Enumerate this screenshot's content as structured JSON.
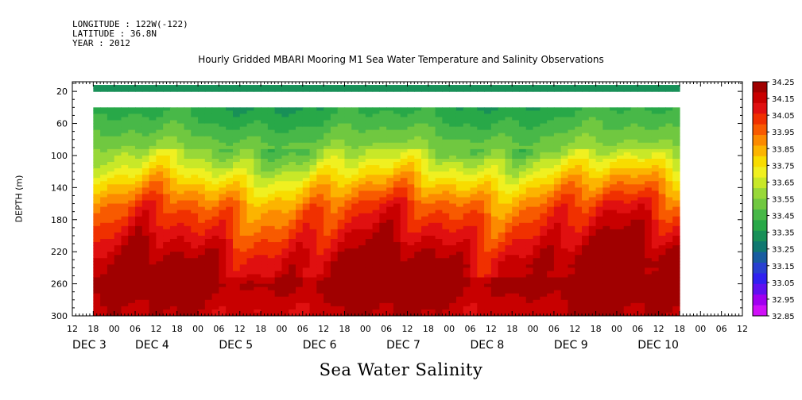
{
  "header": {
    "longitude": "LONGITUDE : 122W(-122)",
    "latitude": "LATITUDE : 36.8N",
    "year": "YEAR : 2012"
  },
  "chart_data": {
    "type": "heatmap",
    "title": "Hourly Gridded MBARI Mooring M1 Sea Water Temperature and Salinity Observations",
    "xlabel": "Sea Water Salinity",
    "ylabel": "DEPTH (m)",
    "y_ticks": [
      20,
      60,
      100,
      140,
      180,
      220,
      260,
      300
    ],
    "ylim": [
      300,
      8
    ],
    "x_hour_ticks": [
      "12",
      "18",
      "00",
      "06",
      "12",
      "18",
      "00",
      "06",
      "12",
      "18",
      "00",
      "06",
      "12",
      "18",
      "00",
      "06",
      "12",
      "18",
      "00",
      "06",
      "12",
      "18",
      "00",
      "06",
      "12",
      "18",
      "00",
      "06",
      "12",
      "18",
      "00",
      "06",
      "12"
    ],
    "x_day_labels": [
      "DEC  3",
      "DEC  4",
      "DEC  5",
      "DEC  6",
      "DEC  7",
      "DEC  8",
      "DEC  9",
      "DEC 10"
    ],
    "colorbar_levels": [
      "34.25",
      "34.15",
      "34.05",
      "33.95",
      "33.85",
      "33.75",
      "33.65",
      "33.55",
      "33.45",
      "33.35",
      "33.25",
      "33.15",
      "33.05",
      "32.95",
      "32.85"
    ],
    "colorbar_colors": [
      "#a00000",
      "#c80000",
      "#e01010",
      "#f03000",
      "#f85a00",
      "#fc8a00",
      "#fcb400",
      "#f8dc00",
      "#f0f020",
      "#c8e828",
      "#98d838",
      "#70c840",
      "#48b848",
      "#28a848",
      "#189058",
      "#107870",
      "#185ca0",
      "#2840d0",
      "#3020f0",
      "#6010f0",
      "#a000f0",
      "#d010f8"
    ],
    "data_region_hours": [
      0,
      168
    ],
    "surface_depth_band": [
      10,
      18
    ],
    "missing_depth_band": [
      18,
      40
    ],
    "profile_points": [
      {
        "depth": 15,
        "salinity": 33.32
      },
      {
        "depth": 50,
        "salinity": 33.4
      },
      {
        "depth": 80,
        "salinity": 33.5
      },
      {
        "depth": 110,
        "salinity": 33.62
      },
      {
        "depth": 130,
        "salinity": 33.75
      },
      {
        "depth": 160,
        "salinity": 33.92
      },
      {
        "depth": 200,
        "salinity": 34.05
      },
      {
        "depth": 240,
        "salinity": 34.18
      },
      {
        "depth": 260,
        "salinity": 34.22
      },
      {
        "depth": 290,
        "salinity": 34.15
      }
    ]
  }
}
